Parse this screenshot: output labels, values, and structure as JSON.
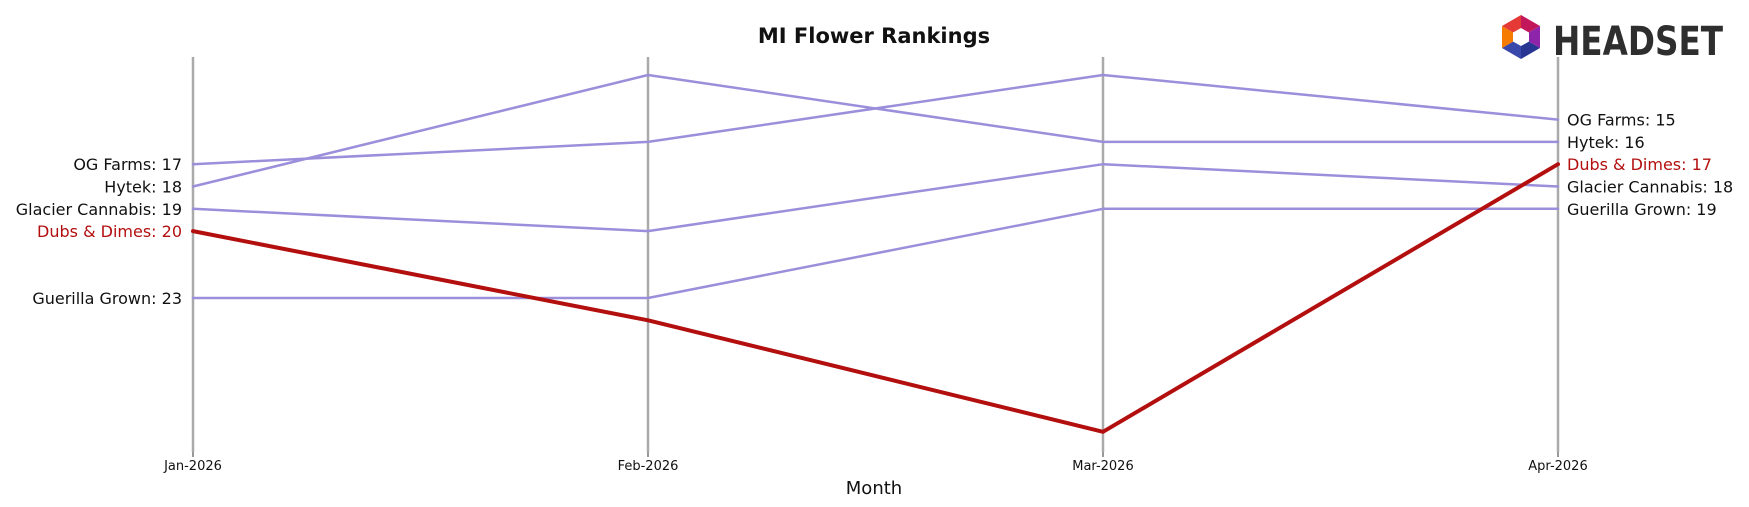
{
  "chart_data": {
    "type": "line",
    "title": "MI Flower Rankings",
    "xlabel": "Month",
    "ylabel": "",
    "x": [
      "Jan-2026",
      "Feb-2026",
      "Mar-2026",
      "Apr-2026"
    ],
    "y_inverted": true,
    "ylim": [
      30,
      13
    ],
    "grid": "vertical lines at each month",
    "legend": "none (labels at line ends)",
    "series": [
      {
        "name": "OG Farms",
        "values": [
          17,
          16,
          13,
          15
        ],
        "color": "#9b8fdb",
        "highlight": false
      },
      {
        "name": "Hytek",
        "values": [
          18,
          13,
          16,
          16
        ],
        "color": "#9b8fdb",
        "highlight": false
      },
      {
        "name": "Glacier Cannabis",
        "values": [
          19,
          20,
          17,
          18
        ],
        "color": "#9b8fdb",
        "highlight": false
      },
      {
        "name": "Dubs & Dimes",
        "values": [
          20,
          24,
          29,
          17
        ],
        "color": "#b30f0f",
        "highlight": true
      },
      {
        "name": "Guerilla Grown",
        "values": [
          23,
          23,
          19,
          19
        ],
        "color": "#9b8fdb",
        "highlight": false
      }
    ],
    "left_labels": [
      "OG Farms: 17",
      "Hytek: 18",
      "Glacier Cannabis: 19",
      "Dubs & Dimes: 20",
      "Guerilla Grown: 23"
    ],
    "right_labels": [
      "OG Farms: 15",
      "Hytek: 16",
      "Dubs & Dimes: 17",
      "Glacier Cannabis: 18",
      "Guerilla Grown: 19"
    ]
  },
  "logo": {
    "text": "HEADSET"
  }
}
